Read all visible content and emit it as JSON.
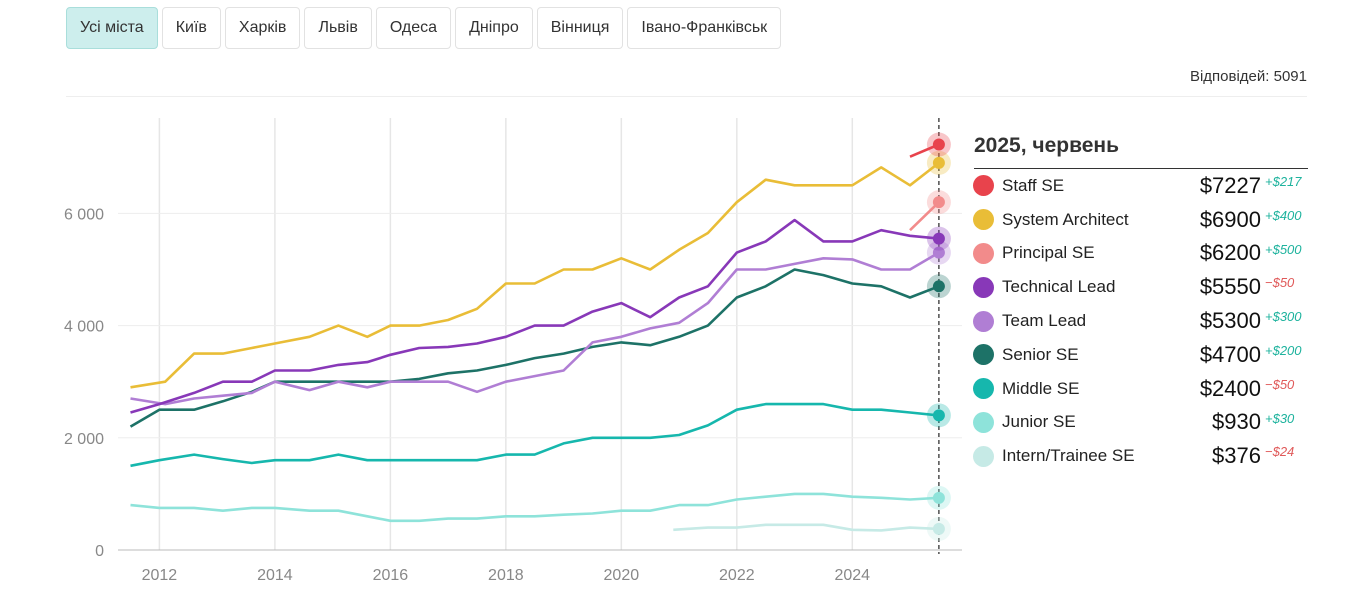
{
  "tabs": [
    {
      "label": "Усі міста",
      "active": true
    },
    {
      "label": "Київ",
      "active": false
    },
    {
      "label": "Харків",
      "active": false
    },
    {
      "label": "Львів",
      "active": false
    },
    {
      "label": "Одеса",
      "active": false
    },
    {
      "label": "Дніпро",
      "active": false
    },
    {
      "label": "Вінниця",
      "active": false
    },
    {
      "label": "Івано-Франківськ",
      "active": false
    }
  ],
  "answers_label": "Відповідей: 5091",
  "legend": {
    "title": "2025, червень",
    "items": [
      {
        "name": "Staff SE",
        "value": "$7227",
        "delta": "+$217",
        "positive": true,
        "color": "#e8434c"
      },
      {
        "name": "System Architect",
        "value": "$6900",
        "delta": "+$400",
        "positive": true,
        "color": "#e9bd37"
      },
      {
        "name": "Principal SE",
        "value": "$6200",
        "delta": "+$500",
        "positive": true,
        "color": "#f28b8b"
      },
      {
        "name": "Technical Lead",
        "value": "$5550",
        "delta": "−$50",
        "positive": false,
        "color": "#8838b8"
      },
      {
        "name": "Team Lead",
        "value": "$5300",
        "delta": "+$300",
        "positive": true,
        "color": "#b07ed4"
      },
      {
        "name": "Senior SE",
        "value": "$4700",
        "delta": "+$200",
        "positive": true,
        "color": "#1d7267"
      },
      {
        "name": "Middle SE",
        "value": "$2400",
        "delta": "−$50",
        "positive": false,
        "color": "#16b7ad"
      },
      {
        "name": "Junior SE",
        "value": "$930",
        "delta": "+$30",
        "positive": true,
        "color": "#8ee3da"
      },
      {
        "name": "Intern/Trainee SE",
        "value": "$376",
        "delta": "−$24",
        "positive": false,
        "color": "#c6eae6"
      }
    ]
  },
  "chart_data": {
    "type": "line",
    "x_ticks": [
      2012,
      2014,
      2016,
      2018,
      2020,
      2022,
      2024
    ],
    "y_ticks": [
      0,
      2000,
      4000,
      6000
    ],
    "y_tick_labels": [
      "0",
      "2 000",
      "4 000",
      "6 000"
    ],
    "xlim": [
      2011.3,
      2025.9
    ],
    "ylim": [
      0,
      7700
    ],
    "grid": true,
    "current_x": 2025.5,
    "series": [
      {
        "name": "Staff SE",
        "color": "#e8434c",
        "points": [
          [
            2025.0,
            7010
          ],
          [
            2025.5,
            7227
          ]
        ]
      },
      {
        "name": "System Architect",
        "color": "#e9bd37",
        "points": [
          [
            2011.5,
            2900
          ],
          [
            2012.1,
            3000
          ],
          [
            2012.6,
            3500
          ],
          [
            2013.1,
            3500
          ],
          [
            2013.6,
            3600
          ],
          [
            2014.1,
            3700
          ],
          [
            2014.6,
            3800
          ],
          [
            2015.1,
            4000
          ],
          [
            2015.6,
            3800
          ],
          [
            2016.0,
            4000
          ],
          [
            2016.5,
            4000
          ],
          [
            2017.0,
            4100
          ],
          [
            2017.5,
            4300
          ],
          [
            2018.0,
            4750
          ],
          [
            2018.5,
            4750
          ],
          [
            2019.0,
            5000
          ],
          [
            2019.5,
            5000
          ],
          [
            2020.0,
            5200
          ],
          [
            2020.5,
            5000
          ],
          [
            2021.0,
            5350
          ],
          [
            2021.5,
            5650
          ],
          [
            2022.0,
            6200
          ],
          [
            2022.5,
            6600
          ],
          [
            2023.0,
            6500
          ],
          [
            2023.5,
            6500
          ],
          [
            2024.0,
            6500
          ],
          [
            2024.5,
            6820
          ],
          [
            2025.0,
            6500
          ],
          [
            2025.5,
            6900
          ]
        ]
      },
      {
        "name": "Principal SE",
        "color": "#f28b8b",
        "points": [
          [
            2025.0,
            5700
          ],
          [
            2025.5,
            6200
          ]
        ]
      },
      {
        "name": "Technical Lead",
        "color": "#8838b8",
        "points": [
          [
            2011.5,
            2450
          ],
          [
            2012.0,
            2600
          ],
          [
            2012.6,
            2800
          ],
          [
            2013.1,
            3000
          ],
          [
            2013.6,
            3000
          ],
          [
            2014.0,
            3200
          ],
          [
            2014.6,
            3200
          ],
          [
            2015.1,
            3300
          ],
          [
            2015.6,
            3350
          ],
          [
            2016.0,
            3480
          ],
          [
            2016.5,
            3600
          ],
          [
            2017.0,
            3620
          ],
          [
            2017.5,
            3680
          ],
          [
            2018.0,
            3800
          ],
          [
            2018.5,
            4000
          ],
          [
            2019.0,
            4000
          ],
          [
            2019.5,
            4250
          ],
          [
            2020.0,
            4400
          ],
          [
            2020.5,
            4150
          ],
          [
            2021.0,
            4500
          ],
          [
            2021.5,
            4700
          ],
          [
            2022.0,
            5300
          ],
          [
            2022.5,
            5500
          ],
          [
            2023.0,
            5880
          ],
          [
            2023.5,
            5500
          ],
          [
            2024.0,
            5500
          ],
          [
            2024.5,
            5700
          ],
          [
            2025.0,
            5600
          ],
          [
            2025.5,
            5550
          ]
        ]
      },
      {
        "name": "Team Lead",
        "color": "#b07ed4",
        "points": [
          [
            2011.5,
            2700
          ],
          [
            2012.1,
            2600
          ],
          [
            2012.6,
            2700
          ],
          [
            2013.1,
            2750
          ],
          [
            2013.6,
            2800
          ],
          [
            2014.0,
            3000
          ],
          [
            2014.6,
            2850
          ],
          [
            2015.1,
            3000
          ],
          [
            2015.6,
            2900
          ],
          [
            2016.0,
            3000
          ],
          [
            2016.5,
            3000
          ],
          [
            2017.0,
            3000
          ],
          [
            2017.5,
            2820
          ],
          [
            2018.0,
            3000
          ],
          [
            2018.5,
            3100
          ],
          [
            2019.0,
            3200
          ],
          [
            2019.5,
            3700
          ],
          [
            2020.0,
            3800
          ],
          [
            2020.5,
            3950
          ],
          [
            2021.0,
            4050
          ],
          [
            2021.5,
            4400
          ],
          [
            2022.0,
            5000
          ],
          [
            2022.5,
            5000
          ],
          [
            2023.0,
            5100
          ],
          [
            2023.5,
            5200
          ],
          [
            2024.0,
            5180
          ],
          [
            2024.5,
            5000
          ],
          [
            2025.0,
            5000
          ],
          [
            2025.5,
            5300
          ]
        ]
      },
      {
        "name": "Senior SE",
        "color": "#1d7267",
        "points": [
          [
            2011.5,
            2200
          ],
          [
            2012.0,
            2500
          ],
          [
            2012.6,
            2500
          ],
          [
            2013.1,
            2650
          ],
          [
            2013.6,
            2820
          ],
          [
            2014.0,
            3000
          ],
          [
            2014.6,
            3000
          ],
          [
            2015.1,
            3000
          ],
          [
            2015.6,
            3000
          ],
          [
            2016.0,
            3000
          ],
          [
            2016.5,
            3050
          ],
          [
            2017.0,
            3150
          ],
          [
            2017.5,
            3200
          ],
          [
            2018.0,
            3300
          ],
          [
            2018.5,
            3420
          ],
          [
            2019.0,
            3500
          ],
          [
            2019.5,
            3620
          ],
          [
            2020.0,
            3700
          ],
          [
            2020.5,
            3650
          ],
          [
            2021.0,
            3800
          ],
          [
            2021.5,
            4000
          ],
          [
            2022.0,
            4500
          ],
          [
            2022.5,
            4700
          ],
          [
            2023.0,
            5000
          ],
          [
            2023.5,
            4900
          ],
          [
            2024.0,
            4750
          ],
          [
            2024.5,
            4700
          ],
          [
            2025.0,
            4500
          ],
          [
            2025.5,
            4700
          ]
        ]
      },
      {
        "name": "Middle SE",
        "color": "#16b7ad",
        "points": [
          [
            2011.5,
            1500
          ],
          [
            2012.0,
            1600
          ],
          [
            2012.6,
            1700
          ],
          [
            2013.1,
            1620
          ],
          [
            2013.6,
            1550
          ],
          [
            2014.0,
            1600
          ],
          [
            2014.6,
            1600
          ],
          [
            2015.1,
            1700
          ],
          [
            2015.6,
            1600
          ],
          [
            2016.0,
            1600
          ],
          [
            2016.5,
            1600
          ],
          [
            2017.0,
            1600
          ],
          [
            2017.5,
            1600
          ],
          [
            2018.0,
            1700
          ],
          [
            2018.5,
            1700
          ],
          [
            2019.0,
            1900
          ],
          [
            2019.5,
            2000
          ],
          [
            2020.0,
            2000
          ],
          [
            2020.5,
            2000
          ],
          [
            2021.0,
            2050
          ],
          [
            2021.5,
            2220
          ],
          [
            2022.0,
            2500
          ],
          [
            2022.5,
            2600
          ],
          [
            2023.0,
            2600
          ],
          [
            2023.5,
            2600
          ],
          [
            2024.0,
            2500
          ],
          [
            2024.5,
            2500
          ],
          [
            2025.0,
            2450
          ],
          [
            2025.5,
            2400
          ]
        ]
      },
      {
        "name": "Junior SE",
        "color": "#8ee3da",
        "points": [
          [
            2011.5,
            800
          ],
          [
            2012.0,
            750
          ],
          [
            2012.6,
            750
          ],
          [
            2013.1,
            700
          ],
          [
            2013.6,
            750
          ],
          [
            2014.0,
            750
          ],
          [
            2014.6,
            700
          ],
          [
            2015.1,
            700
          ],
          [
            2015.6,
            600
          ],
          [
            2016.0,
            520
          ],
          [
            2016.5,
            520
          ],
          [
            2017.0,
            560
          ],
          [
            2017.5,
            560
          ],
          [
            2018.0,
            600
          ],
          [
            2018.5,
            600
          ],
          [
            2019.0,
            630
          ],
          [
            2019.5,
            650
          ],
          [
            2020.0,
            700
          ],
          [
            2020.5,
            700
          ],
          [
            2021.0,
            800
          ],
          [
            2021.5,
            800
          ],
          [
            2022.0,
            900
          ],
          [
            2022.5,
            950
          ],
          [
            2023.0,
            1000
          ],
          [
            2023.5,
            1000
          ],
          [
            2024.0,
            950
          ],
          [
            2024.5,
            930
          ],
          [
            2025.0,
            900
          ],
          [
            2025.5,
            930
          ]
        ]
      },
      {
        "name": "Intern/Trainee SE",
        "color": "#c6eae6",
        "points": [
          [
            2020.9,
            360
          ],
          [
            2021.5,
            400
          ],
          [
            2022.0,
            400
          ],
          [
            2022.5,
            450
          ],
          [
            2023.0,
            450
          ],
          [
            2023.5,
            450
          ],
          [
            2024.0,
            360
          ],
          [
            2024.5,
            350
          ],
          [
            2025.0,
            400
          ],
          [
            2025.5,
            376
          ]
        ]
      }
    ]
  }
}
